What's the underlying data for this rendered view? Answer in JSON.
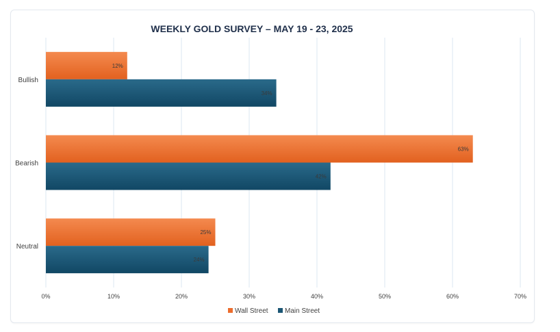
{
  "chart_data": {
    "type": "bar",
    "orientation": "horizontal",
    "title": "WEEKLY GOLD SURVEY – MAY 19 - 23, 2025",
    "categories": [
      "Bullish",
      "Bearish",
      "Neutral"
    ],
    "series": [
      {
        "name": "Wall Street",
        "values": [
          12,
          63,
          25
        ],
        "labels": [
          "12%",
          "63%",
          "25%"
        ],
        "color": "#ec6d2d"
      },
      {
        "name": "Main Street",
        "values": [
          34,
          42,
          24
        ],
        "labels": [
          "34%",
          "42%",
          "24%"
        ],
        "color": "#1b5674"
      }
    ],
    "xlim": [
      0,
      70
    ],
    "xticks": [
      0,
      10,
      20,
      30,
      40,
      50,
      60,
      70
    ],
    "xtick_labels": [
      "0%",
      "10%",
      "20%",
      "30%",
      "40%",
      "50%",
      "60%",
      "70%"
    ],
    "grid": true,
    "legend": "bottom"
  },
  "colors": {
    "wall_street": "#ec6d2d",
    "main_street": "#1b5674",
    "grid": "#dbe7f2",
    "title": "#1f2f4a",
    "axis_text": "#404040"
  }
}
